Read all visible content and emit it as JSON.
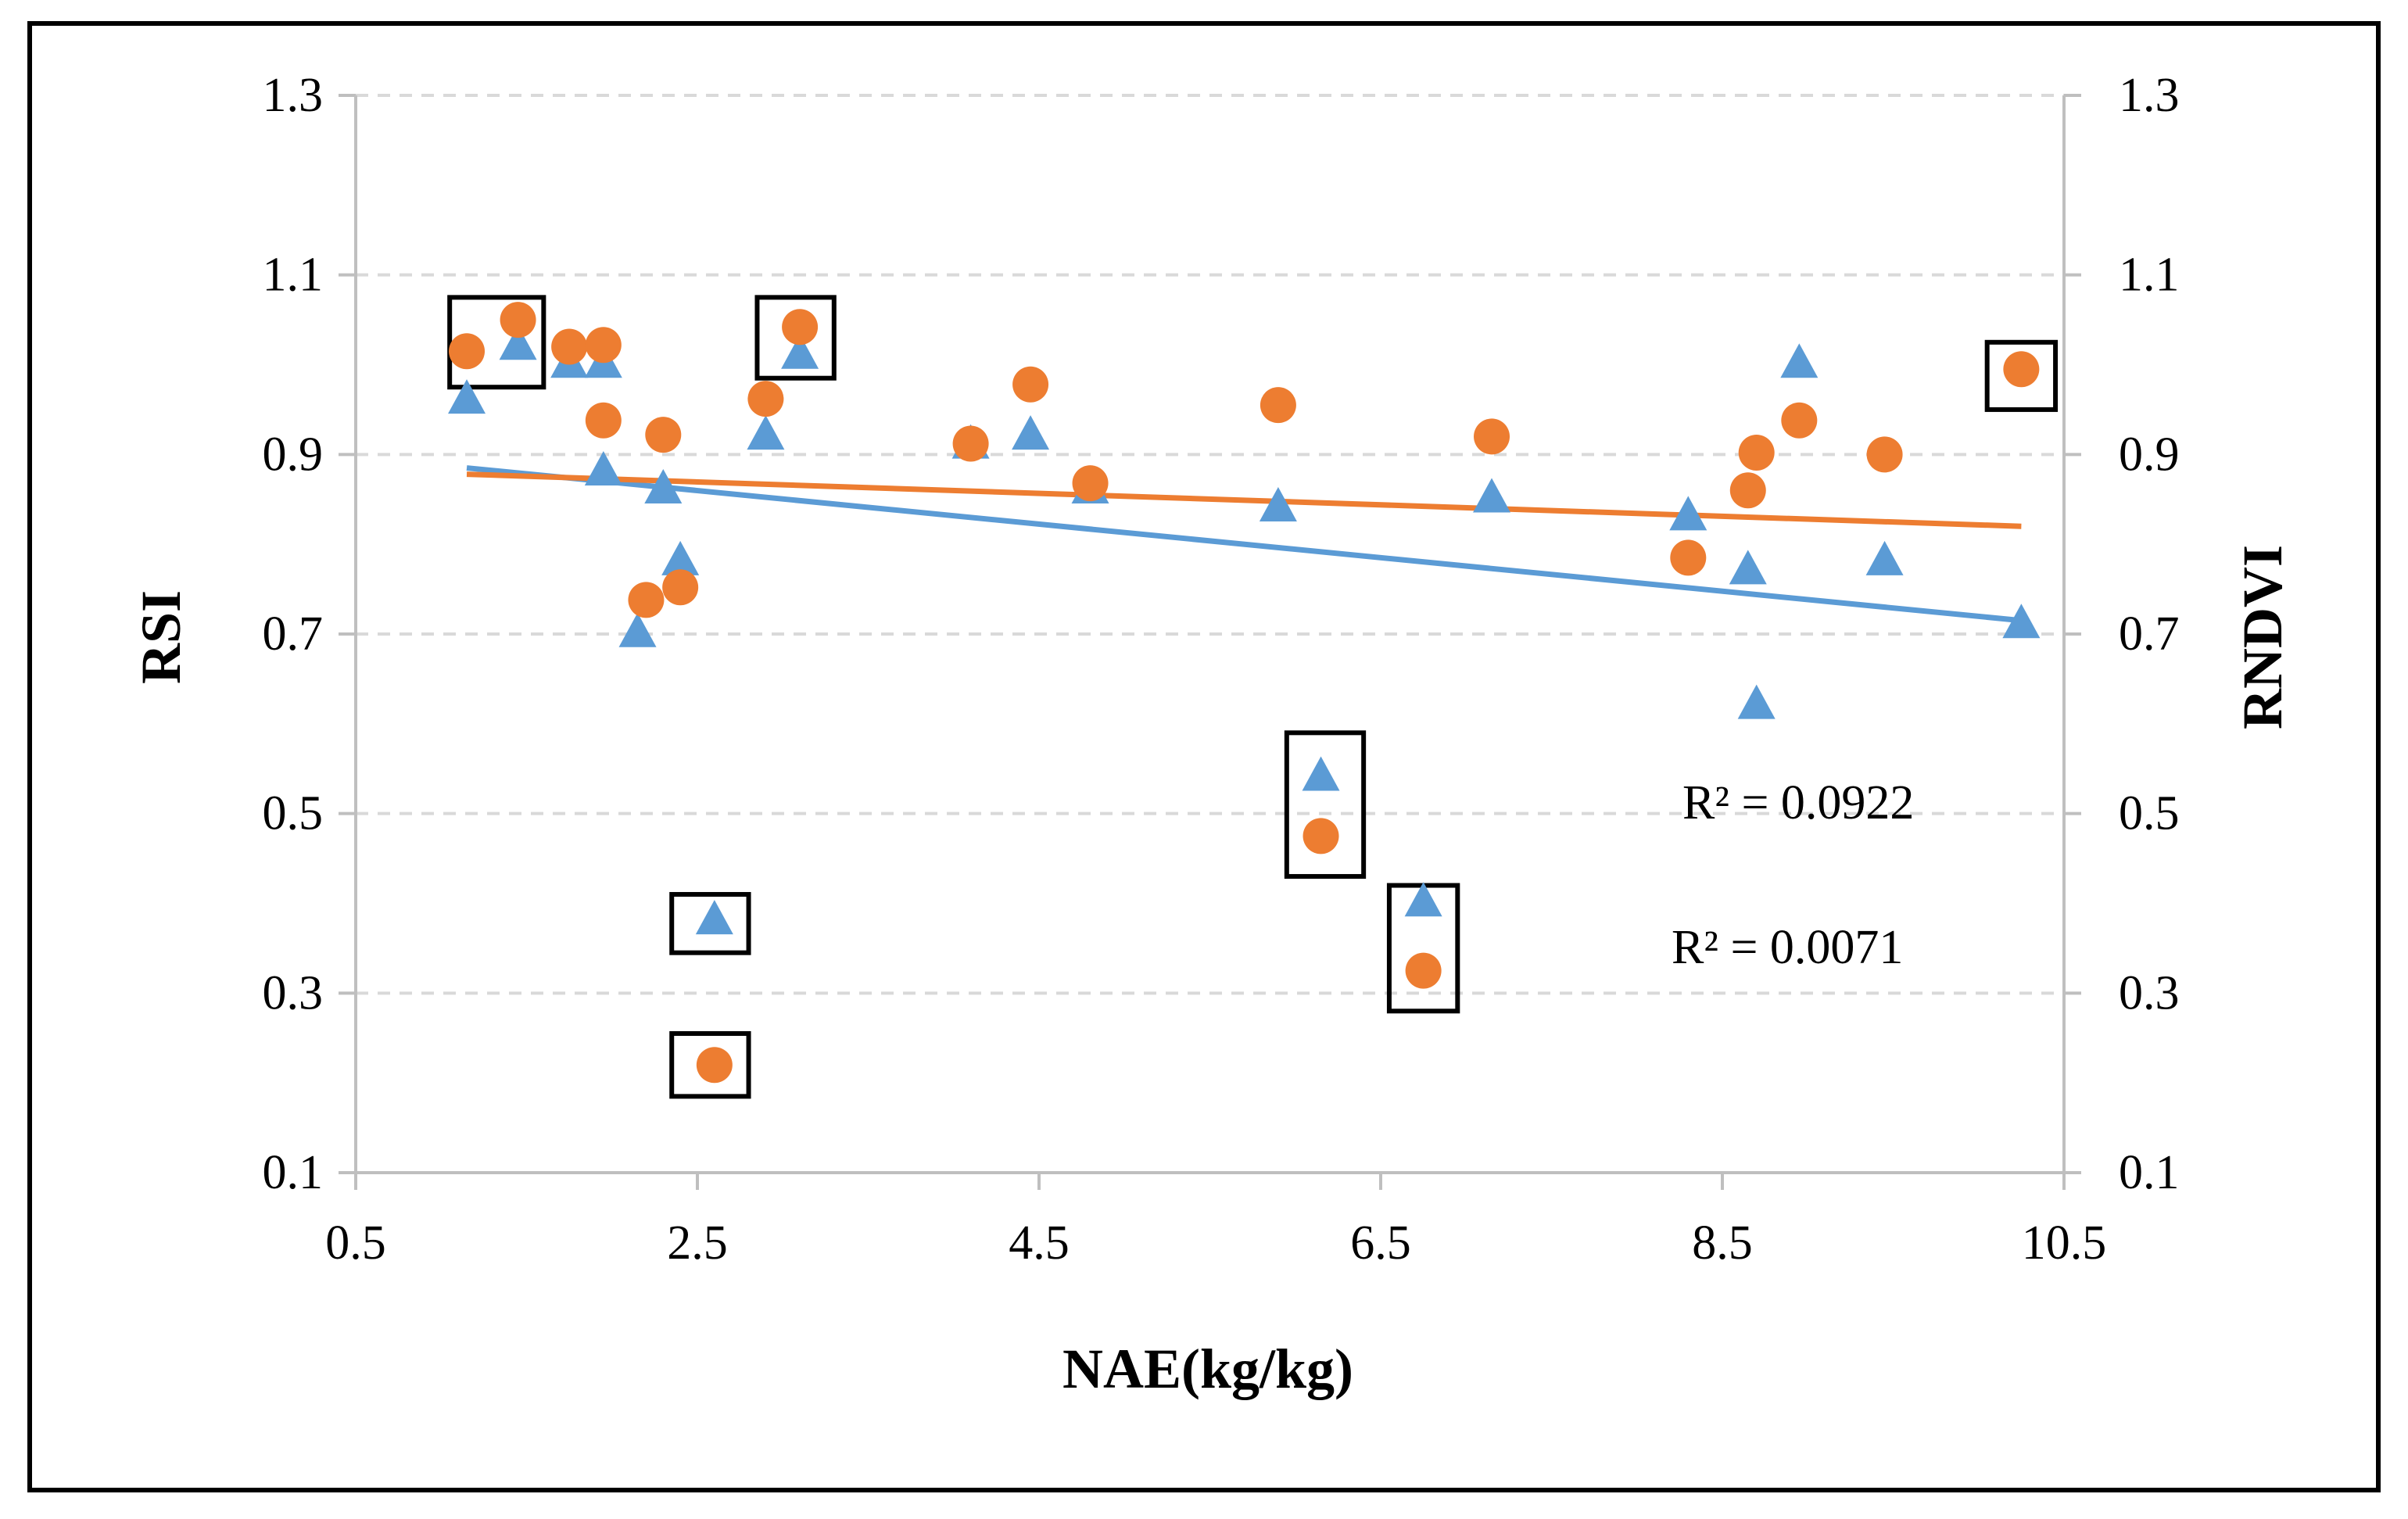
{
  "chart_data": {
    "type": "scatter",
    "xlabel": "NAE(kg/kg)",
    "ylabel": "RSI",
    "y2label": "RNDVI",
    "xlim": [
      0.5,
      10.5
    ],
    "ylim": [
      0.1,
      1.3
    ],
    "x_ticks": [
      "0.5",
      "2.5",
      "4.5",
      "6.5",
      "8.5",
      "10.5"
    ],
    "x_tick_values": [
      0.5,
      2.5,
      4.5,
      6.5,
      8.5,
      10.5
    ],
    "y_ticks": [
      "0.1",
      "0.3",
      "0.5",
      "0.7",
      "0.9",
      "1.1",
      "1.3"
    ],
    "y_tick_values": [
      0.1,
      0.3,
      0.5,
      0.7,
      0.9,
      1.1,
      1.3
    ],
    "grid": true,
    "series": [
      {
        "name": "RSI",
        "marker": "triangle",
        "color": "#5B9BD5",
        "points": [
          [
            1.15,
            0.96
          ],
          [
            1.45,
            1.02
          ],
          [
            1.75,
            1.0
          ],
          [
            1.95,
            1.0
          ],
          [
            1.95,
            0.88
          ],
          [
            2.15,
            0.7
          ],
          [
            2.3,
            0.86
          ],
          [
            2.4,
            0.78
          ],
          [
            2.6,
            0.38
          ],
          [
            2.9,
            0.92
          ],
          [
            3.1,
            1.01
          ],
          [
            4.1,
            0.91
          ],
          [
            4.45,
            0.92
          ],
          [
            4.8,
            0.86
          ],
          [
            5.9,
            0.84
          ],
          [
            6.15,
            0.54
          ],
          [
            6.75,
            0.4
          ],
          [
            7.15,
            0.85
          ],
          [
            8.3,
            0.83
          ],
          [
            8.65,
            0.77
          ],
          [
            8.7,
            0.62
          ],
          [
            8.95,
            1.0
          ],
          [
            9.45,
            0.78
          ],
          [
            10.25,
            0.71
          ]
        ],
        "trendline": {
          "x": [
            1.15,
            10.25
          ],
          "y": [
            0.885,
            0.715
          ],
          "r2": "R² = 0.0922"
        }
      },
      {
        "name": "RNDVI",
        "marker": "circle",
        "color": "#ED7D31",
        "points": [
          [
            1.15,
            1.015
          ],
          [
            1.45,
            1.05
          ],
          [
            1.75,
            1.02
          ],
          [
            1.95,
            1.022
          ],
          [
            1.95,
            0.938
          ],
          [
            2.2,
            0.738
          ],
          [
            2.3,
            0.922
          ],
          [
            2.4,
            0.752
          ],
          [
            2.6,
            0.22
          ],
          [
            2.9,
            0.962
          ],
          [
            3.1,
            1.042
          ],
          [
            4.1,
            0.912
          ],
          [
            4.45,
            0.978
          ],
          [
            4.8,
            0.868
          ],
          [
            5.9,
            0.955
          ],
          [
            6.15,
            0.475
          ],
          [
            6.75,
            0.325
          ],
          [
            7.15,
            0.92
          ],
          [
            8.3,
            0.785
          ],
          [
            8.65,
            0.86
          ],
          [
            8.7,
            0.902
          ],
          [
            8.95,
            0.938
          ],
          [
            9.45,
            0.9
          ],
          [
            10.25,
            0.995
          ]
        ],
        "trendline": {
          "x": [
            1.15,
            10.25
          ],
          "y": [
            0.878,
            0.82
          ],
          "r2": "R² = 0.0071"
        }
      }
    ],
    "highlight_boxes": [
      {
        "x": [
          1.05,
          1.6
        ],
        "y": [
          0.975,
          1.075
        ]
      },
      {
        "x": [
          2.85,
          3.3
        ],
        "y": [
          0.985,
          1.075
        ]
      },
      {
        "x": [
          2.35,
          2.8
        ],
        "y": [
          0.345,
          0.41
        ]
      },
      {
        "x": [
          2.35,
          2.8
        ],
        "y": [
          0.185,
          0.255
        ]
      },
      {
        "x": [
          5.95,
          6.4
        ],
        "y": [
          0.43,
          0.59
        ]
      },
      {
        "x": [
          6.55,
          6.95
        ],
        "y": [
          0.28,
          0.42
        ]
      },
      {
        "x": [
          10.05,
          10.45
        ],
        "y": [
          0.95,
          1.025
        ]
      }
    ],
    "annotations": [
      "R² = 0.0922",
      "R² = 0.0071"
    ]
  }
}
